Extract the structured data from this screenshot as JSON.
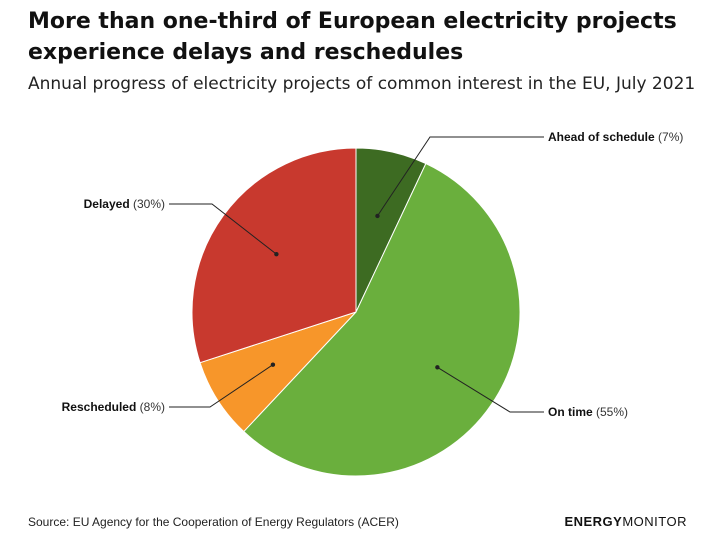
{
  "header": {
    "title": "More than one-third of European electricity projects experience delays and reschedules",
    "subtitle": "Annual progress of electricity projects of common interest in the EU, July 2021"
  },
  "chart_data": {
    "type": "pie",
    "slices": [
      {
        "label": "Ahead of schedule",
        "pct_text": "(7%)",
        "value": 7,
        "color": "#3d6b22"
      },
      {
        "label": "On time",
        "pct_text": "(55%)",
        "value": 55,
        "color": "#6aaf3d"
      },
      {
        "label": "Rescheduled",
        "pct_text": "(8%)",
        "value": 8,
        "color": "#f7962a"
      },
      {
        "label": "Delayed",
        "pct_text": "(30%)",
        "value": 30,
        "color": "#c8392e"
      }
    ]
  },
  "footer": {
    "source": "Source: EU Agency for the Cooperation of Energy Regulators (ACER)",
    "brand_bold": "ENERGY",
    "brand_light": "MONITOR"
  }
}
